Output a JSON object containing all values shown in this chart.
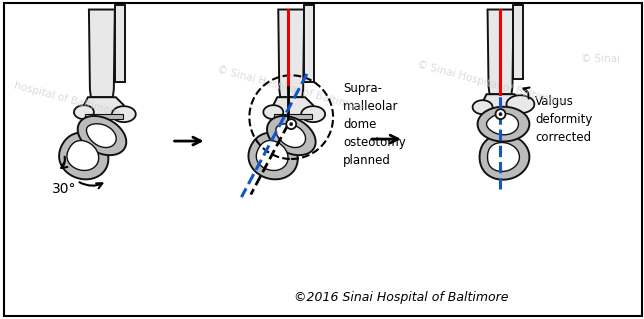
{
  "background_color": "#ffffff",
  "border_color": "#000000",
  "watermark_color": "#cccccc",
  "copyright_text": "©2016 Sinai Hospital of Baltimore",
  "copyright_fontsize": 9,
  "panel1_angle_text": "30°",
  "panel2_label": "Supra-\nmalleolar\ndome\nosteotomy\nplanned",
  "panel3_label": "Valgus\ndeformity\ncorrected",
  "red_line_color": "#ee0000",
  "blue_line_color": "#1155cc",
  "bone_fill_color": "#bbbbbb",
  "bone_edge_color": "#111111",
  "light_gray": "#e8e8e8",
  "white": "#ffffff"
}
